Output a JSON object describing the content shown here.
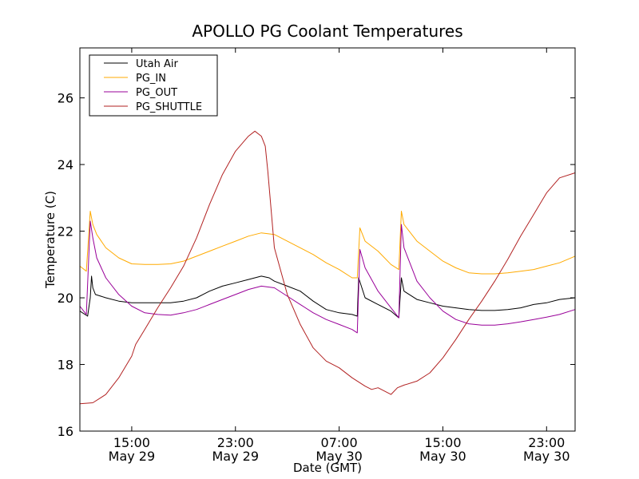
{
  "chart_data": {
    "type": "line",
    "title": "APOLLO PG Coolant Temperatures",
    "xlabel": "Date (GMT)",
    "ylabel": "Temperature (C)",
    "xunit": "hours since May 29 09:00 GMT",
    "xlim": [
      0,
      38.2
    ],
    "ylim": [
      16,
      27.5
    ],
    "yticks": [
      16,
      18,
      20,
      22,
      24,
      26
    ],
    "xticks": [
      {
        "x": 4,
        "time": "15:00",
        "date": "May 29"
      },
      {
        "x": 12,
        "time": "23:00",
        "date": "May 29"
      },
      {
        "x": 20,
        "time": "07:00",
        "date": "May 30"
      },
      {
        "x": 28,
        "time": "15:00",
        "date": "May 30"
      },
      {
        "x": 36,
        "time": "23:00",
        "date": "May 30"
      }
    ],
    "legend_position": "upper-left",
    "series": [
      {
        "name": "Utah Air",
        "color": "#000000",
        "x": [
          0,
          0.6,
          0.8,
          0.9,
          1.0,
          1.2,
          2,
          3,
          4,
          5,
          6,
          7,
          8,
          9,
          10,
          11,
          12,
          13,
          14,
          14.6,
          15,
          16,
          17,
          18,
          19,
          20,
          21,
          21.4,
          21.5,
          22,
          23,
          24,
          24.6,
          24.8,
          25,
          26,
          27,
          28,
          29,
          30,
          31,
          32,
          33,
          34,
          35,
          36,
          37,
          38.2
        ],
        "values": [
          19.6,
          19.45,
          20.0,
          20.65,
          20.3,
          20.1,
          20.0,
          19.9,
          19.85,
          19.85,
          19.85,
          19.85,
          19.9,
          20.0,
          20.2,
          20.35,
          20.45,
          20.55,
          20.65,
          20.6,
          20.5,
          20.35,
          20.2,
          19.9,
          19.65,
          19.55,
          19.5,
          19.45,
          20.6,
          20.0,
          19.8,
          19.6,
          19.4,
          20.6,
          20.2,
          19.95,
          19.85,
          19.75,
          19.7,
          19.65,
          19.62,
          19.62,
          19.65,
          19.7,
          19.8,
          19.85,
          19.95,
          20.0
        ]
      },
      {
        "name": "PG_IN",
        "color": "#ffaa00",
        "x": [
          0,
          0.5,
          0.8,
          1.0,
          1.3,
          2,
          3,
          4,
          5,
          6,
          7,
          8,
          9,
          10,
          11,
          12,
          13,
          14,
          15,
          16,
          17,
          18,
          19,
          20,
          21,
          21.4,
          21.6,
          22,
          23,
          24,
          24.6,
          24.8,
          25,
          26,
          27,
          28,
          29,
          30,
          31,
          32,
          33,
          34,
          35,
          36,
          37,
          38.2
        ],
        "values": [
          20.95,
          20.8,
          22.6,
          22.2,
          21.9,
          21.5,
          21.2,
          21.02,
          21.0,
          21.0,
          21.02,
          21.1,
          21.25,
          21.4,
          21.55,
          21.7,
          21.85,
          21.95,
          21.9,
          21.7,
          21.5,
          21.3,
          21.05,
          20.85,
          20.6,
          20.6,
          22.1,
          21.7,
          21.4,
          21.0,
          20.85,
          22.6,
          22.2,
          21.7,
          21.4,
          21.1,
          20.9,
          20.75,
          20.72,
          20.72,
          20.75,
          20.8,
          20.85,
          20.95,
          21.05,
          21.25
        ]
      },
      {
        "name": "PG_OUT",
        "color": "#990099",
        "x": [
          0,
          0.5,
          0.8,
          1.0,
          1.3,
          2,
          3,
          4,
          5,
          6,
          7,
          8,
          9,
          10,
          11,
          12,
          13,
          14,
          15,
          16,
          17,
          18,
          19,
          20,
          21,
          21.4,
          21.6,
          22,
          23,
          24,
          24.6,
          24.8,
          25,
          26,
          27,
          28,
          29,
          30,
          31,
          32,
          33,
          34,
          35,
          36,
          37,
          38.2
        ],
        "values": [
          19.75,
          19.5,
          22.3,
          21.8,
          21.2,
          20.6,
          20.1,
          19.75,
          19.55,
          19.5,
          19.48,
          19.55,
          19.65,
          19.8,
          19.95,
          20.1,
          20.25,
          20.35,
          20.3,
          20.05,
          19.8,
          19.55,
          19.35,
          19.2,
          19.05,
          18.95,
          21.45,
          20.9,
          20.2,
          19.7,
          19.4,
          22.2,
          21.5,
          20.5,
          20.0,
          19.6,
          19.35,
          19.22,
          19.18,
          19.18,
          19.22,
          19.28,
          19.35,
          19.42,
          19.5,
          19.65
        ]
      },
      {
        "name": "PG_SHUTTLE",
        "color": "#b22222",
        "x": [
          0,
          1,
          2,
          3,
          4,
          4.3,
          5,
          6,
          7,
          8,
          9,
          10,
          11,
          12,
          13,
          13.5,
          14,
          14.3,
          14.5,
          15,
          16,
          17,
          18,
          19,
          20,
          21,
          22,
          22.5,
          23,
          24,
          24.5,
          25,
          26,
          27,
          28,
          29,
          30,
          31,
          32,
          33,
          34,
          35,
          36,
          37,
          38.2
        ],
        "values": [
          16.82,
          16.85,
          17.1,
          17.6,
          18.25,
          18.6,
          19.05,
          19.7,
          20.3,
          20.95,
          21.8,
          22.8,
          23.7,
          24.4,
          24.85,
          25.0,
          24.85,
          24.55,
          23.8,
          21.5,
          20.1,
          19.2,
          18.5,
          18.1,
          17.9,
          17.6,
          17.35,
          17.25,
          17.3,
          17.1,
          17.3,
          17.38,
          17.5,
          17.75,
          18.2,
          18.75,
          19.35,
          19.9,
          20.5,
          21.15,
          21.85,
          22.5,
          23.15,
          23.6,
          23.75
        ]
      }
    ]
  }
}
